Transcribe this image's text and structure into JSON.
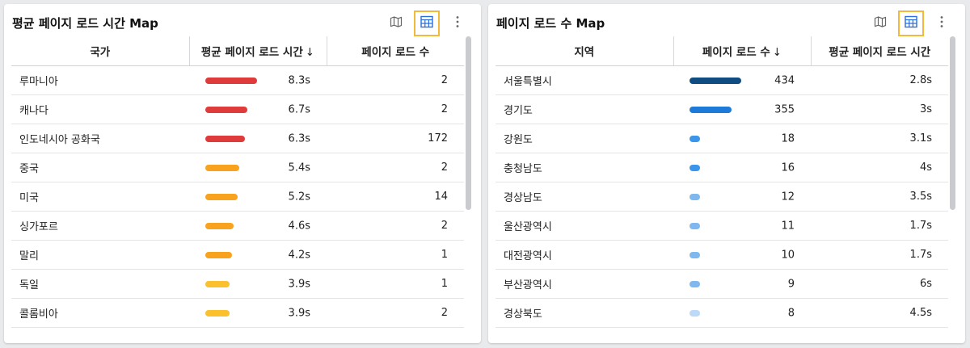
{
  "left": {
    "title": "평균 페이지 로드 시간 Map",
    "headers": [
      "국가",
      "평균 페이지 로드 시간",
      "페이지 로드 수"
    ],
    "sort_arrow": "↓",
    "rows": [
      {
        "name": "루마니아",
        "bar_fraction": 1.0,
        "color": "#e03b3b",
        "time": "8.3s",
        "count": "2"
      },
      {
        "name": "캐나다",
        "bar_fraction": 0.81,
        "color": "#e03b3b",
        "time": "6.7s",
        "count": "2"
      },
      {
        "name": "인도네시아 공화국",
        "bar_fraction": 0.76,
        "color": "#e03b3b",
        "time": "6.3s",
        "count": "172"
      },
      {
        "name": "중국",
        "bar_fraction": 0.65,
        "color": "#f9a21e",
        "time": "5.4s",
        "count": "2"
      },
      {
        "name": "미국",
        "bar_fraction": 0.63,
        "color": "#f9a21e",
        "time": "5.2s",
        "count": "14"
      },
      {
        "name": "싱가포르",
        "bar_fraction": 0.55,
        "color": "#f9a21e",
        "time": "4.6s",
        "count": "2"
      },
      {
        "name": "말리",
        "bar_fraction": 0.51,
        "color": "#f9a21e",
        "time": "4.2s",
        "count": "1"
      },
      {
        "name": "독일",
        "bar_fraction": 0.47,
        "color": "#fbc02d",
        "time": "3.9s",
        "count": "1"
      },
      {
        "name": "콜롬비아",
        "bar_fraction": 0.47,
        "color": "#fbc02d",
        "time": "3.9s",
        "count": "2"
      }
    ]
  },
  "right": {
    "title": "페이지 로드 수 Map",
    "headers": [
      "지역",
      "페이지 로드 수",
      "평균 페이지 로드 시간"
    ],
    "sort_arrow": "↓",
    "rows": [
      {
        "name": "서울특별시",
        "bar_fraction": 1.0,
        "color": "#0f4c81",
        "count": "434",
        "time": "2.8s"
      },
      {
        "name": "경기도",
        "bar_fraction": 0.82,
        "color": "#1e7ad9",
        "count": "355",
        "time": "3s"
      },
      {
        "name": "강원도",
        "bar_fraction": 0.2,
        "color": "#3b95ea",
        "count": "18",
        "time": "3.1s"
      },
      {
        "name": "충청남도",
        "bar_fraction": 0.2,
        "color": "#3b95ea",
        "count": "16",
        "time": "4s"
      },
      {
        "name": "경상남도",
        "bar_fraction": 0.2,
        "color": "#7fb8ef",
        "count": "12",
        "time": "3.5s"
      },
      {
        "name": "울산광역시",
        "bar_fraction": 0.2,
        "color": "#7fb8ef",
        "count": "11",
        "time": "1.7s"
      },
      {
        "name": "대전광역시",
        "bar_fraction": 0.2,
        "color": "#7fb8ef",
        "count": "10",
        "time": "1.7s"
      },
      {
        "name": "부산광역시",
        "bar_fraction": 0.2,
        "color": "#7fb8ef",
        "count": "9",
        "time": "6s"
      },
      {
        "name": "경상북도",
        "bar_fraction": 0.2,
        "color": "#bcdaf7",
        "count": "8",
        "time": "4.5s"
      }
    ]
  },
  "icons": {
    "map": "map-icon",
    "grid": "table-view-icon",
    "more": "more-vertical-icon",
    "grid_selected_border": "#f2b93b"
  }
}
